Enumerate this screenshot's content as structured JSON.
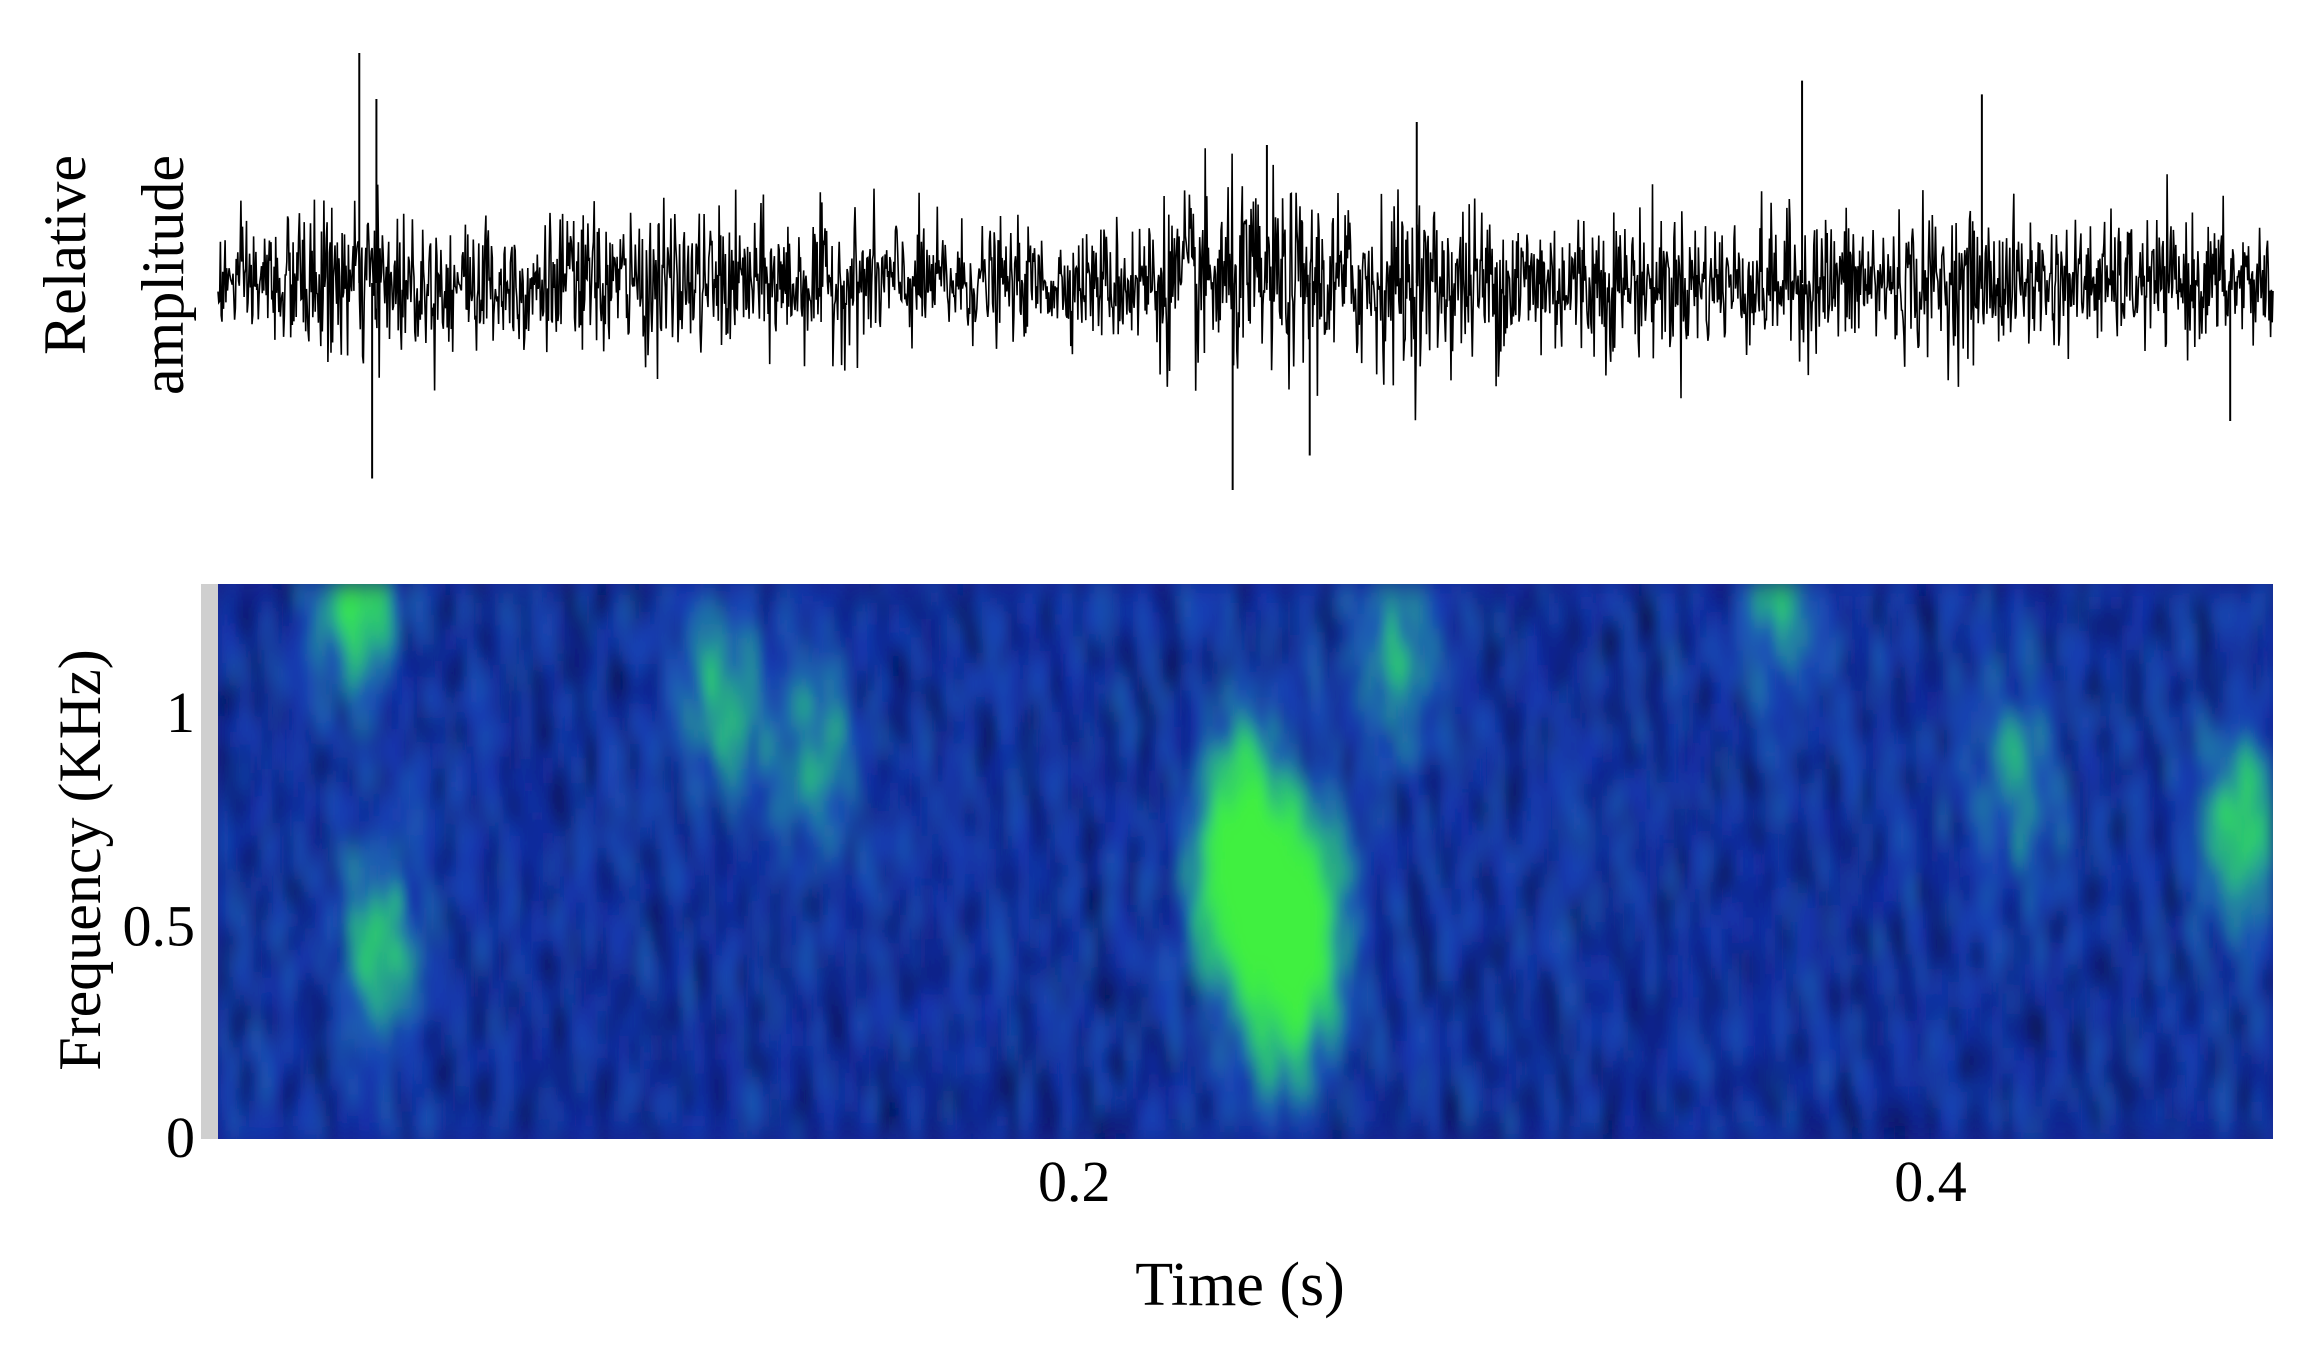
{
  "chart_data": [
    {
      "type": "line",
      "panel": "waveform",
      "ylabel": [
        "Relative",
        "amplitude"
      ],
      "xlim": [
        0,
        0.48
      ],
      "grid": false,
      "colors": {
        "trace": "#000000"
      },
      "notes_peaks_t": [
        0.033,
        0.036,
        0.237,
        0.245,
        0.255,
        0.37,
        0.412
      ],
      "noise_envelope": [
        {
          "t": 0.0,
          "amp": 0.32
        },
        {
          "t": 0.03,
          "amp": 0.5
        },
        {
          "t": 0.05,
          "amp": 0.42
        },
        {
          "t": 0.1,
          "amp": 0.45
        },
        {
          "t": 0.15,
          "amp": 0.42
        },
        {
          "t": 0.2,
          "amp": 0.3
        },
        {
          "t": 0.23,
          "amp": 0.6
        },
        {
          "t": 0.26,
          "amp": 0.55
        },
        {
          "t": 0.3,
          "amp": 0.5
        },
        {
          "t": 0.35,
          "amp": 0.42
        },
        {
          "t": 0.4,
          "amp": 0.45
        },
        {
          "t": 0.44,
          "amp": 0.38
        },
        {
          "t": 0.48,
          "amp": 0.4
        }
      ],
      "spikes": [
        {
          "t": 0.033,
          "v": 1.0
        },
        {
          "t": 0.036,
          "v": -0.85
        },
        {
          "t": 0.037,
          "v": 0.8
        },
        {
          "t": 0.237,
          "v": -0.9
        },
        {
          "t": 0.255,
          "v": -0.75
        },
        {
          "t": 0.245,
          "v": 0.6
        },
        {
          "t": 0.28,
          "v": 0.7
        },
        {
          "t": 0.37,
          "v": 0.88
        },
        {
          "t": 0.412,
          "v": 0.82
        },
        {
          "t": 0.47,
          "v": -0.6
        }
      ]
    },
    {
      "type": "heatmap",
      "panel": "spectrogram",
      "xlabel": "Time (s)",
      "ylabel": "Frequency (KHz)",
      "xlim": [
        0,
        0.48
      ],
      "ylim": [
        0,
        1.3
      ],
      "x_ticks": [
        0.2,
        0.4
      ],
      "x_tick_labels": [
        "0.2",
        "0.4"
      ],
      "y_ticks": [
        0,
        0.5,
        1
      ],
      "y_tick_labels": [
        "0",
        "0.5",
        "1"
      ],
      "grid": false,
      "colormap": [
        "#000000",
        "#0a1a7a",
        "#1535b5",
        "#1f5cb5",
        "#25a08c",
        "#2fd860",
        "#40f040"
      ],
      "hotspots": [
        {
          "t": 0.032,
          "f": 1.3,
          "intensity": 1.0
        },
        {
          "t": 0.038,
          "f": 0.45,
          "intensity": 0.65
        },
        {
          "t": 0.118,
          "f": 1.05,
          "intensity": 0.6
        },
        {
          "t": 0.14,
          "f": 0.9,
          "intensity": 0.5
        },
        {
          "t": 0.236,
          "f": 0.6,
          "intensity": 0.85
        },
        {
          "t": 0.245,
          "f": 0.55,
          "intensity": 1.0
        },
        {
          "t": 0.255,
          "f": 0.55,
          "intensity": 0.9
        },
        {
          "t": 0.25,
          "f": 0.3,
          "intensity": 0.7
        },
        {
          "t": 0.24,
          "f": 0.8,
          "intensity": 0.6
        },
        {
          "t": 0.275,
          "f": 1.15,
          "intensity": 0.55
        },
        {
          "t": 0.365,
          "f": 1.3,
          "intensity": 0.6
        },
        {
          "t": 0.42,
          "f": 0.85,
          "intensity": 0.5
        },
        {
          "t": 0.472,
          "f": 0.72,
          "intensity": 0.75
        }
      ]
    }
  ]
}
